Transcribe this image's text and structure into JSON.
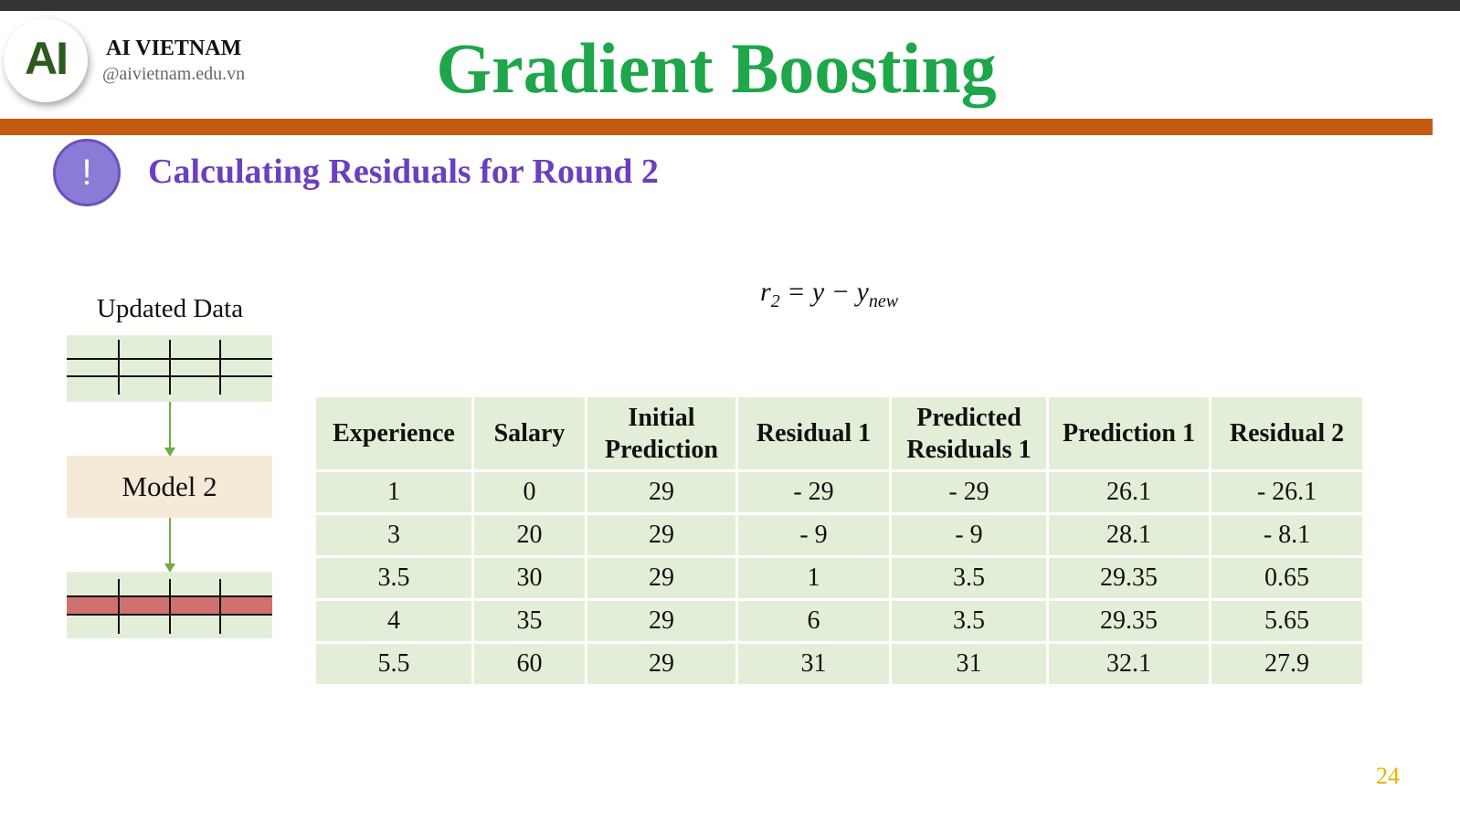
{
  "header": {
    "logo_text": "AI",
    "brand": "AI VIETNAM",
    "handle": "@aivietnam.edu.vn",
    "title": "Gradient Boosting"
  },
  "section": {
    "icon": "exclamation-icon",
    "icon_glyph": "!",
    "subtitle": "Calculating Residuals for Round 2"
  },
  "formula": {
    "lhs": "r",
    "lhs_sub": "2",
    "eq": " = y − y",
    "rhs_sub": "new"
  },
  "diagram": {
    "label": "Updated Data",
    "model_label": "Model 2"
  },
  "table": {
    "headers": [
      "Experience",
      "Salary",
      "Initial Prediction",
      "Residual 1",
      "Predicted Residuals 1",
      "Prediction 1",
      "Residual 2"
    ],
    "rows": [
      [
        "1",
        "0",
        "29",
        "- 29",
        "- 29",
        "26.1",
        "- 26.1"
      ],
      [
        "3",
        "20",
        "29",
        "- 9",
        "- 9",
        "28.1",
        "- 8.1"
      ],
      [
        "3.5",
        "30",
        "29",
        "1",
        "3.5",
        "29.35",
        "0.65"
      ],
      [
        "4",
        "35",
        "29",
        "6",
        "3.5",
        "29.35",
        "5.65"
      ],
      [
        "5.5",
        "60",
        "29",
        "31",
        "31",
        "32.1",
        "27.9"
      ]
    ]
  },
  "page_number": "24",
  "colors": {
    "title": "#1ea64a",
    "accent_bar": "#c55a11",
    "subtitle": "#6b3fbf",
    "table_fill": "#e3eed8",
    "highlight_row": "#d07070",
    "page_number": "#e8b400"
  }
}
